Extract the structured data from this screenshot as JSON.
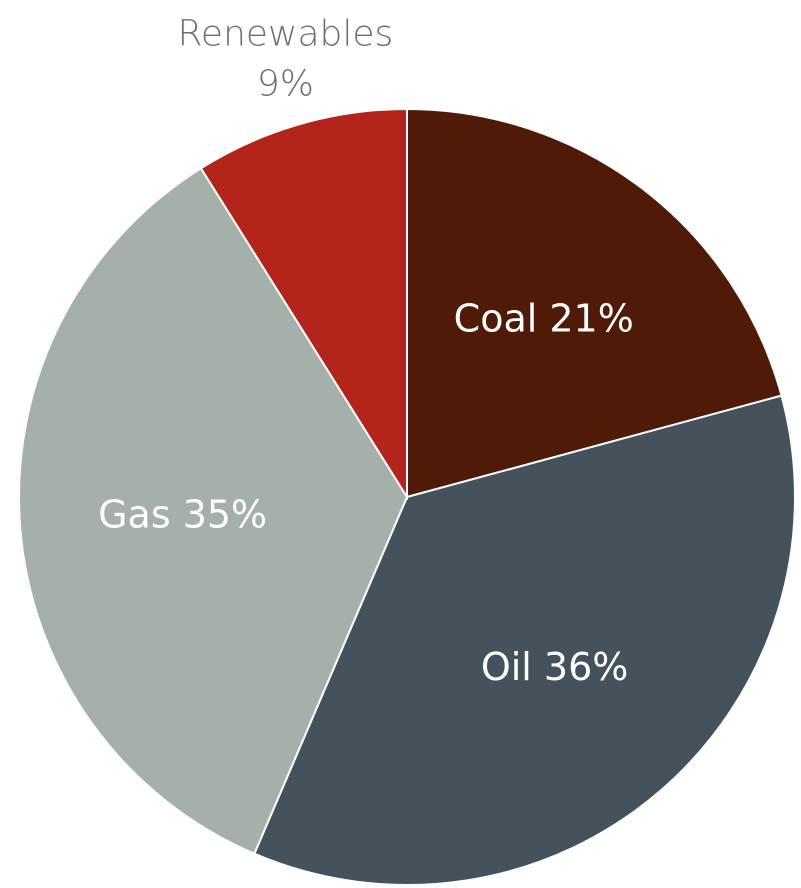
{
  "chart_data": {
    "type": "pie",
    "start_angle_deg": 0,
    "direction": "clockwise",
    "slices": [
      {
        "label": "Coal",
        "value": 21,
        "display": "21%",
        "color": "#4f1a08",
        "label_position": "inside"
      },
      {
        "label": "Oil",
        "value": 36,
        "display": "36%",
        "color": "#45525c",
        "label_position": "inside"
      },
      {
        "label": "Gas",
        "value": 35,
        "display": "35%",
        "color": "#a6b0aa",
        "label_position": "inside"
      },
      {
        "label": "Renewables",
        "value": 9,
        "display": "9%",
        "color": "#b3241b",
        "label_position": "outside"
      }
    ]
  }
}
